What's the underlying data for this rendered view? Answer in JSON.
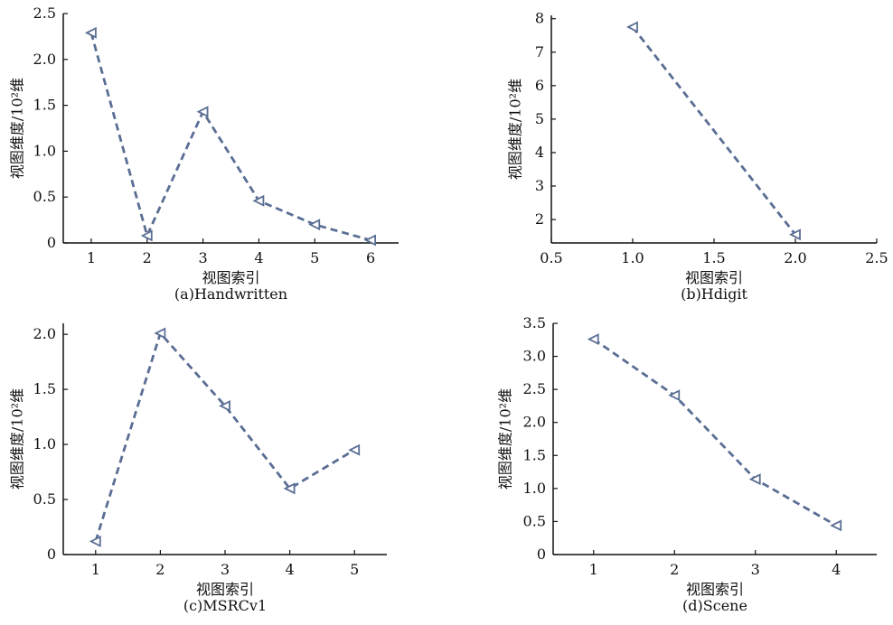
{
  "style": {
    "line_color": "#5a6e94",
    "marker": "triangle-left",
    "line_style": "dashed"
  },
  "chart_data": [
    {
      "type": "line",
      "caption": "(a)Handwritten",
      "xlabel": "视图索引",
      "ylabel": "视图维度/10²维",
      "x": [
        1,
        2,
        3,
        4,
        5,
        6
      ],
      "values": [
        2.29,
        0.08,
        1.43,
        0.46,
        0.2,
        0.03
      ],
      "xlim": [
        0.5,
        6.5
      ],
      "ylim": [
        0,
        2.5
      ],
      "xticks": [
        1,
        2,
        3,
        4,
        5,
        6
      ],
      "xtick_labels": [
        "1",
        "2",
        "3",
        "4",
        "5",
        "6"
      ],
      "yticks": [
        0,
        0.5,
        1.0,
        1.5,
        2.0,
        2.5
      ],
      "ytick_labels": [
        "0",
        "0.5",
        "1.0",
        "1.5",
        "2.0",
        "2.5"
      ],
      "grid": false,
      "legend": false
    },
    {
      "type": "line",
      "caption": "(b)Hdigit",
      "xlabel": "视图索引",
      "ylabel": "视图维度/10²维",
      "x": [
        1.0,
        2.0
      ],
      "values": [
        7.75,
        1.55
      ],
      "xlim": [
        0.5,
        2.5
      ],
      "ylim": [
        1.3,
        8.1
      ],
      "xticks": [
        0.5,
        1.0,
        1.5,
        2.0,
        2.5
      ],
      "xtick_labels": [
        "0.5",
        "1.0",
        "1.5",
        "2.0",
        "2.5"
      ],
      "yticks": [
        2,
        3,
        4,
        5,
        6,
        7,
        8
      ],
      "ytick_labels": [
        "2",
        "3",
        "4",
        "5",
        "6",
        "7",
        "8"
      ],
      "grid": false,
      "legend": false
    },
    {
      "type": "line",
      "caption": "(c)MSRCv1",
      "xlabel": "视图索引",
      "ylabel": "视图维度/10²维",
      "x": [
        1,
        2,
        3,
        4,
        5
      ],
      "values": [
        0.12,
        2.01,
        1.35,
        0.6,
        0.95
      ],
      "xlim": [
        0.5,
        5.5
      ],
      "ylim": [
        0,
        2.1
      ],
      "xticks": [
        1,
        2,
        3,
        4,
        5
      ],
      "xtick_labels": [
        "1",
        "2",
        "3",
        "4",
        "5"
      ],
      "yticks": [
        0,
        0.5,
        1.0,
        1.5,
        2.0
      ],
      "ytick_labels": [
        "0",
        "0.5",
        "1.0",
        "1.5",
        "2.0"
      ],
      "grid": false,
      "legend": false
    },
    {
      "type": "line",
      "caption": "(d)Scene",
      "xlabel": "视图索引",
      "ylabel": "视图维度/10²维",
      "x": [
        1,
        2,
        3,
        4
      ],
      "values": [
        3.26,
        2.41,
        1.14,
        0.44
      ],
      "xlim": [
        0.5,
        4.5
      ],
      "ylim": [
        0,
        3.5
      ],
      "xticks": [
        1,
        2,
        3,
        4
      ],
      "xtick_labels": [
        "1",
        "2",
        "3",
        "4"
      ],
      "yticks": [
        0,
        0.5,
        1.0,
        1.5,
        2.0,
        2.5,
        3.0,
        3.5
      ],
      "ytick_labels": [
        "0",
        "0.5",
        "1.0",
        "1.5",
        "2.0",
        "2.5",
        "3.0",
        "3.5"
      ],
      "grid": false,
      "legend": false
    }
  ]
}
